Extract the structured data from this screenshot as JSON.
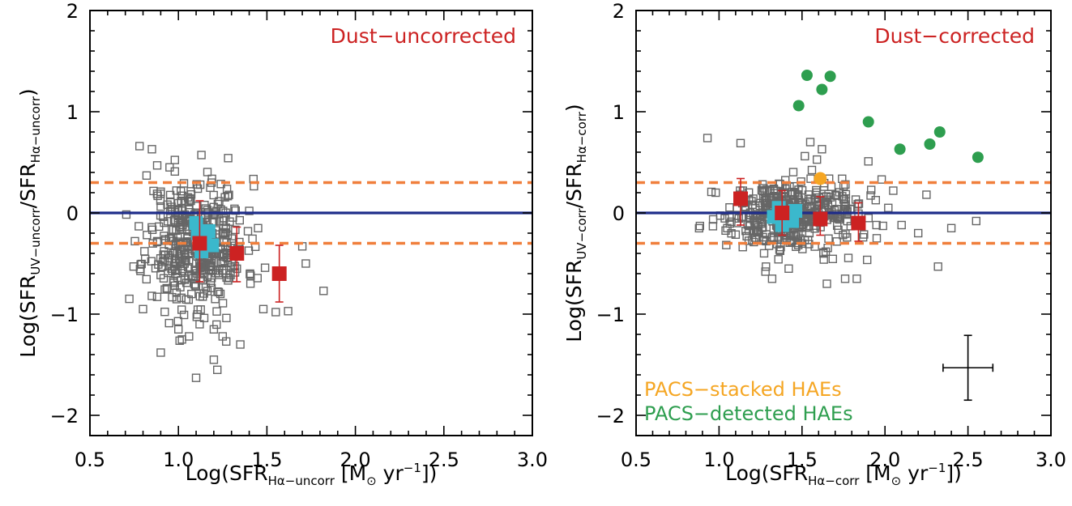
{
  "colors": {
    "frame": "#000000",
    "gray_points": "#666666",
    "red_bins": "#cc2222",
    "cyan_points": "#3bb8cc",
    "blue_line": "#1f2d8a",
    "orange_dash": "#f07f3c",
    "orange_points": "#f5a623",
    "green_points": "#2e9e4f"
  },
  "chart_data": [
    {
      "type": "scatter",
      "panel_label": "Dust−uncorrected",
      "xlabel": {
        "prefix": "Log(SFR",
        "sub": "Hα−uncorr",
        "suffix": " [M",
        "sun": "⊙",
        "unit_mid": " yr",
        "sup": "−1",
        "end": "])"
      },
      "ylabel": {
        "prefix": "Log(SFR",
        "sub1": "UV−uncorr",
        "mid": "/SFR",
        "sub2": "Hα−uncorr",
        "end": ")"
      },
      "xlim": [
        0.5,
        3.0
      ],
      "ylim": [
        -2.2,
        2.0
      ],
      "x_ticks": [
        0.5,
        1.0,
        1.5,
        2.0,
        2.5,
        3.0
      ],
      "x_tick_labels": [
        "0.5",
        "1.0",
        "1.5",
        "2.0",
        "2.5",
        "3.0"
      ],
      "y_ticks": [
        -2,
        -1,
        0,
        1,
        2
      ],
      "y_tick_labels": [
        "−2",
        "−1",
        "0",
        "1",
        "2"
      ],
      "reference_lines": [
        {
          "y": 0.0,
          "style": "solid",
          "color": "blue_line"
        },
        {
          "y": 0.3,
          "style": "dashed",
          "color": "orange_dash"
        },
        {
          "y": -0.3,
          "style": "dashed",
          "color": "orange_dash"
        }
      ],
      "gray_points": {
        "n": 430,
        "center": [
          1.1,
          -0.3
        ],
        "spread": [
          0.14,
          0.32
        ],
        "seed": 11,
        "listed": [
          [
            0.78,
            0.66
          ],
          [
            0.88,
            0.47
          ],
          [
            0.95,
            0.45
          ],
          [
            0.98,
            0.41
          ],
          [
            0.82,
            0.37
          ],
          [
            0.8,
            -0.95
          ],
          [
            0.85,
            -0.82
          ],
          [
            0.9,
            -1.38
          ],
          [
            1.02,
            -1.25
          ],
          [
            1.06,
            -1.22
          ],
          [
            1.1,
            -1.63
          ],
          [
            1.2,
            -1.45
          ],
          [
            1.22,
            -1.55
          ],
          [
            1.25,
            -1.22
          ],
          [
            1.27,
            -1.27
          ],
          [
            1.35,
            -1.3
          ],
          [
            1.48,
            -0.95
          ],
          [
            1.55,
            -0.98
          ],
          [
            1.62,
            -0.97
          ],
          [
            1.7,
            -0.33
          ],
          [
            1.72,
            -0.5
          ],
          [
            1.82,
            -0.77
          ],
          [
            1.45,
            -0.15
          ],
          [
            1.4,
            0.02
          ],
          [
            1.18,
            0.25
          ],
          [
            1.2,
            -1.15
          ],
          [
            1.12,
            -1.1
          ],
          [
            1.0,
            -1.15
          ]
        ]
      },
      "cyan_points": [
        [
          1.15,
          -0.25
        ],
        [
          1.11,
          -0.2
        ],
        [
          1.19,
          -0.32
        ],
        [
          1.13,
          -0.38
        ],
        [
          1.1,
          -0.1
        ],
        [
          1.17,
          -0.18
        ]
      ],
      "red_bins": [
        {
          "x": 1.12,
          "y": -0.3,
          "err_low": 0.38,
          "err_high": 0.42
        },
        {
          "x": 1.33,
          "y": -0.4,
          "err_low": 0.28,
          "err_high": 0.26
        },
        {
          "x": 1.57,
          "y": -0.6,
          "err_low": 0.28,
          "err_high": 0.28
        }
      ],
      "error_cross": null,
      "legend": []
    },
    {
      "type": "scatter",
      "panel_label": "Dust−corrected",
      "xlabel": {
        "prefix": "Log(SFR",
        "sub": "Hα−corr",
        "suffix": " [M",
        "sun": "⊙",
        "unit_mid": " yr",
        "sup": "−1",
        "end": "])"
      },
      "ylabel": {
        "prefix": "Log(SFR",
        "sub1": "UV−corr",
        "mid": "/SFR",
        "sub2": "Hα−corr",
        "end": ")"
      },
      "xlim": [
        0.5,
        3.0
      ],
      "ylim": [
        -2.2,
        2.0
      ],
      "x_ticks": [
        0.5,
        1.0,
        1.5,
        2.0,
        2.5,
        3.0
      ],
      "x_tick_labels": [
        "0.5",
        "1.0",
        "1.5",
        "2.0",
        "2.5",
        "3.0"
      ],
      "y_ticks": [
        -2,
        -1,
        0,
        1,
        2
      ],
      "y_tick_labels": [
        "−2",
        "−1",
        "0",
        "1",
        "2"
      ],
      "reference_lines": [
        {
          "y": 0.0,
          "style": "solid",
          "color": "blue_line"
        },
        {
          "y": 0.3,
          "style": "dashed",
          "color": "orange_dash"
        },
        {
          "y": -0.3,
          "style": "dashed",
          "color": "orange_dash"
        }
      ],
      "gray_points": {
        "n": 420,
        "center": [
          1.42,
          -0.02
        ],
        "spread": [
          0.2,
          0.17
        ],
        "seed": 29,
        "listed": [
          [
            0.93,
            0.74
          ],
          [
            1.13,
            0.69
          ],
          [
            1.55,
            0.7
          ],
          [
            1.62,
            0.63
          ],
          [
            1.9,
            0.51
          ],
          [
            1.98,
            0.33
          ],
          [
            2.05,
            0.22
          ],
          [
            2.25,
            0.18
          ],
          [
            2.32,
            -0.53
          ],
          [
            2.55,
            -0.08
          ],
          [
            2.4,
            -0.15
          ],
          [
            2.2,
            -0.2
          ],
          [
            1.65,
            -0.7
          ],
          [
            1.76,
            -0.65
          ],
          [
            1.83,
            -0.65
          ],
          [
            1.28,
            -0.58
          ],
          [
            1.32,
            -0.65
          ],
          [
            1.42,
            -0.55
          ],
          [
            1.05,
            -0.15
          ],
          [
            0.98,
            0.2
          ],
          [
            1.95,
            -0.25
          ],
          [
            2.1,
            -0.12
          ],
          [
            2.02,
            0.05
          ]
        ]
      },
      "cyan_points": [
        [
          1.4,
          -0.02
        ],
        [
          1.36,
          0.05
        ],
        [
          1.44,
          -0.08
        ],
        [
          1.38,
          -0.12
        ],
        [
          1.33,
          -0.04
        ],
        [
          1.46,
          0.02
        ]
      ],
      "red_bins": [
        {
          "x": 1.13,
          "y": 0.14,
          "err_low": 0.26,
          "err_high": 0.2
        },
        {
          "x": 1.38,
          "y": 0.0,
          "err_low": 0.22,
          "err_high": 0.22
        },
        {
          "x": 1.61,
          "y": -0.06,
          "err_low": 0.16,
          "err_high": 0.22
        },
        {
          "x": 1.84,
          "y": -0.1,
          "err_low": 0.18,
          "err_high": 0.2
        }
      ],
      "orange_points": [
        [
          1.61,
          0.34
        ]
      ],
      "green_points": [
        [
          1.48,
          1.06
        ],
        [
          1.53,
          1.36
        ],
        [
          1.62,
          1.22
        ],
        [
          1.67,
          1.35
        ],
        [
          1.9,
          0.9
        ],
        [
          2.09,
          0.63
        ],
        [
          2.27,
          0.68
        ],
        [
          2.33,
          0.8
        ],
        [
          2.56,
          0.55
        ]
      ],
      "error_cross": {
        "x": 2.5,
        "y": -1.53,
        "xerr": 0.15,
        "yerr": 0.32
      },
      "legend": [
        {
          "text": "PACS−stacked HAEs",
          "color": "orange_points"
        },
        {
          "text": "PACS−detected HAEs",
          "color": "green_points"
        }
      ]
    }
  ]
}
